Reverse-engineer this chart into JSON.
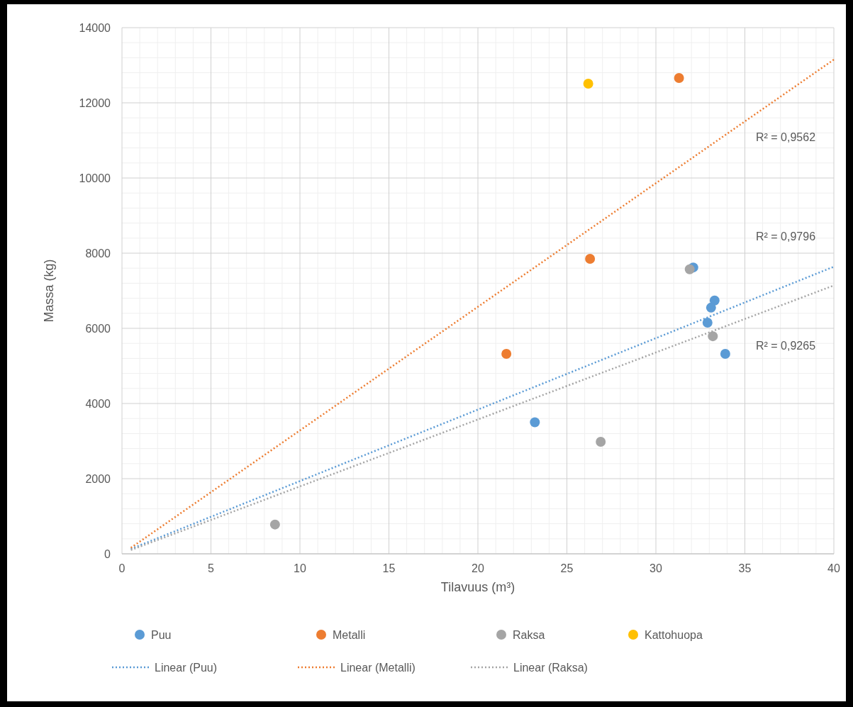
{
  "chart_data": {
    "type": "scatter",
    "xlabel": "Tilavuus (m³)",
    "ylabel": "Massa (kg)",
    "xlim": [
      0,
      40
    ],
    "xticks": [
      0,
      5,
      10,
      15,
      20,
      25,
      30,
      35,
      40
    ],
    "ylim": [
      0,
      14000
    ],
    "yticks": [
      0,
      2000,
      4000,
      6000,
      8000,
      10000,
      12000,
      14000
    ],
    "grid": true,
    "legend": "bottom",
    "series": [
      {
        "name": "Puu",
        "marker": "circle",
        "color": "#5b9bd5",
        "x": [
          23.2,
          32.1,
          33.3,
          33.1,
          32.9,
          33.9
        ],
        "values": [
          3500,
          7620,
          6740,
          6550,
          6150,
          5320
        ]
      },
      {
        "name": "Metalli",
        "marker": "circle",
        "color": "#ed7d31",
        "x": [
          21.6,
          26.3,
          31.3
        ],
        "values": [
          5320,
          7850,
          12660
        ]
      },
      {
        "name": "Raksa",
        "marker": "circle",
        "color": "#a5a5a5",
        "x": [
          8.6,
          26.9,
          31.9,
          33.2
        ],
        "values": [
          780,
          2980,
          7570,
          5790
        ]
      },
      {
        "name": "Kattohuopa",
        "marker": "circle",
        "color": "#ffc000",
        "x": [
          26.2
        ],
        "values": [
          12510
        ]
      },
      {
        "name": "Linear (Puu)",
        "type": "line",
        "marker": "none",
        "line_style": "dotted",
        "color": "#5b9bd5",
        "x": [
          0.5,
          40
        ],
        "values": [
          130,
          7640
        ]
      },
      {
        "name": "Linear (Metalli)",
        "type": "line",
        "marker": "none",
        "line_style": "dotted",
        "color": "#ed7d31",
        "x": [
          0.5,
          40
        ],
        "values": [
          160,
          13150
        ]
      },
      {
        "name": "Linear (Raksa)",
        "type": "line",
        "marker": "none",
        "line_style": "dotted",
        "color": "#a5a5a5",
        "x": [
          0.5,
          40
        ],
        "values": [
          100,
          7140
        ]
      }
    ],
    "annotations": [
      "R² = 0,9562",
      "R² = 0,9796",
      "R² = 0,9265"
    ]
  }
}
